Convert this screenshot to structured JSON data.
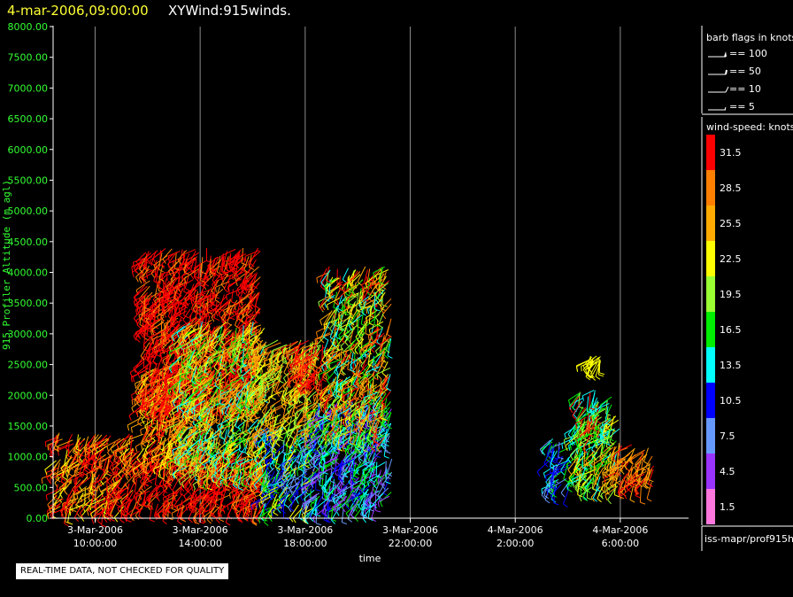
{
  "chart_data": {
    "type": "scatter",
    "title_date": "4-mar-2006,09:00:00",
    "title": "XYWind:915winds.",
    "ylabel": "915 Profiler Altitude (m agl)",
    "xlabel": "time",
    "ylim": [
      0,
      8000
    ],
    "xlim_hours": [
      8.4,
      32.6
    ],
    "y_ticks": [
      "0.00",
      "500.00",
      "1000.00",
      "1500.00",
      "2000.00",
      "2500.00",
      "3000.00",
      "3500.00",
      "4000.00",
      "4500.00",
      "5000.00",
      "5500.00",
      "6000.00",
      "6500.00",
      "7000.00",
      "7500.00",
      "8000.00"
    ],
    "x_ticks": [
      {
        "date": "3-Mar-2006",
        "time": "10:00:00"
      },
      {
        "date": "3-Mar-2006",
        "time": "14:00:00"
      },
      {
        "date": "3-Mar-2006",
        "time": "18:00:00"
      },
      {
        "date": "3-Mar-2006",
        "time": "22:00:00"
      },
      {
        "date": "4-Mar-2006",
        "time": "2:00:00"
      },
      {
        "date": "4-Mar-2006",
        "time": "6:00:00"
      }
    ],
    "barb_legend": {
      "title": "barb flags in knots",
      "items": [
        "== 100",
        "== 50",
        "== 10",
        "== 5"
      ]
    },
    "speed_legend": {
      "title": "wind-speed: knots",
      "items": [
        {
          "label": "31.5",
          "color": "#ff0000"
        },
        {
          "label": "28.5",
          "color": "#ff7f00"
        },
        {
          "label": "25.5",
          "color": "#ffaa00"
        },
        {
          "label": "22.5",
          "color": "#ffff00"
        },
        {
          "label": "19.5",
          "color": "#99ff33"
        },
        {
          "label": "16.5",
          "color": "#00ee00"
        },
        {
          "label": "13.5",
          "color": "#00ffff"
        },
        {
          "label": "10.5",
          "color": "#0000ff"
        },
        {
          "label": "7.5",
          "color": "#6699ff"
        },
        {
          "label": "4.5",
          "color": "#9933ff"
        },
        {
          "label": "1.5",
          "color": "#ff77dd"
        }
      ]
    },
    "source": "iss-mapr/prof915h",
    "clusters": [
      {
        "t0": 8.5,
        "t1": 11.5,
        "h0": 150,
        "h1": 1400,
        "speeds": [
          31.5,
          31.5,
          28.5,
          31.5,
          25.5,
          22.5
        ]
      },
      {
        "t0": 11.5,
        "t1": 16.5,
        "h0": 150,
        "h1": 1100,
        "speeds": [
          31.5,
          31.5,
          31.5,
          28.5
        ]
      },
      {
        "t0": 11.8,
        "t1": 14.5,
        "h0": 900,
        "h1": 2500,
        "speeds": [
          28.5,
          25.5,
          22.5,
          31.5
        ]
      },
      {
        "t0": 11.8,
        "t1": 16.3,
        "h0": 1800,
        "h1": 4400,
        "speeds": [
          31.5,
          31.5,
          31.5,
          28.5
        ]
      },
      {
        "t0": 13.2,
        "t1": 16.6,
        "h0": 700,
        "h1": 3200,
        "speeds": [
          28.5,
          25.5,
          22.5,
          19.5,
          16.5,
          13.5
        ]
      },
      {
        "t0": 16.4,
        "t1": 18.5,
        "h0": 150,
        "h1": 1500,
        "speeds": [
          13.5,
          10.5,
          7.5,
          16.5,
          22.5
        ]
      },
      {
        "t0": 16.2,
        "t1": 18.6,
        "h0": 1400,
        "h1": 2900,
        "speeds": [
          19.5,
          22.5,
          25.5,
          28.5
        ]
      },
      {
        "t0": 17.6,
        "t1": 18.9,
        "h0": 2200,
        "h1": 2900,
        "speeds": [
          31.5,
          31.5,
          28.5
        ]
      },
      {
        "t0": 18.4,
        "t1": 21.3,
        "h0": 150,
        "h1": 1900,
        "speeds": [
          10.5,
          7.5,
          13.5,
          16.5,
          4.5
        ]
      },
      {
        "t0": 18.8,
        "t1": 21.3,
        "h0": 1300,
        "h1": 4100,
        "speeds": [
          19.5,
          22.5,
          25.5,
          28.5,
          16.5,
          31.5,
          13.5
        ]
      },
      {
        "t0": 27.3,
        "t1": 28.2,
        "h0": 500,
        "h1": 1300,
        "speeds": [
          10.5,
          7.5,
          13.5,
          16.5
        ]
      },
      {
        "t0": 28.3,
        "t1": 30.0,
        "h0": 500,
        "h1": 1700,
        "speeds": [
          22.5,
          25.5,
          19.5,
          16.5,
          13.5
        ]
      },
      {
        "t0": 28.4,
        "t1": 29.7,
        "h0": 1300,
        "h1": 2100,
        "speeds": [
          31.5,
          19.5,
          13.5,
          16.5
        ]
      },
      {
        "t0": 29.7,
        "t1": 31.3,
        "h0": 500,
        "h1": 1200,
        "speeds": [
          28.5,
          25.5,
          31.5
        ]
      },
      {
        "t0": 28.8,
        "t1": 29.3,
        "h0": 2550,
        "h1": 2650,
        "speeds": [
          22.5
        ]
      }
    ]
  }
}
